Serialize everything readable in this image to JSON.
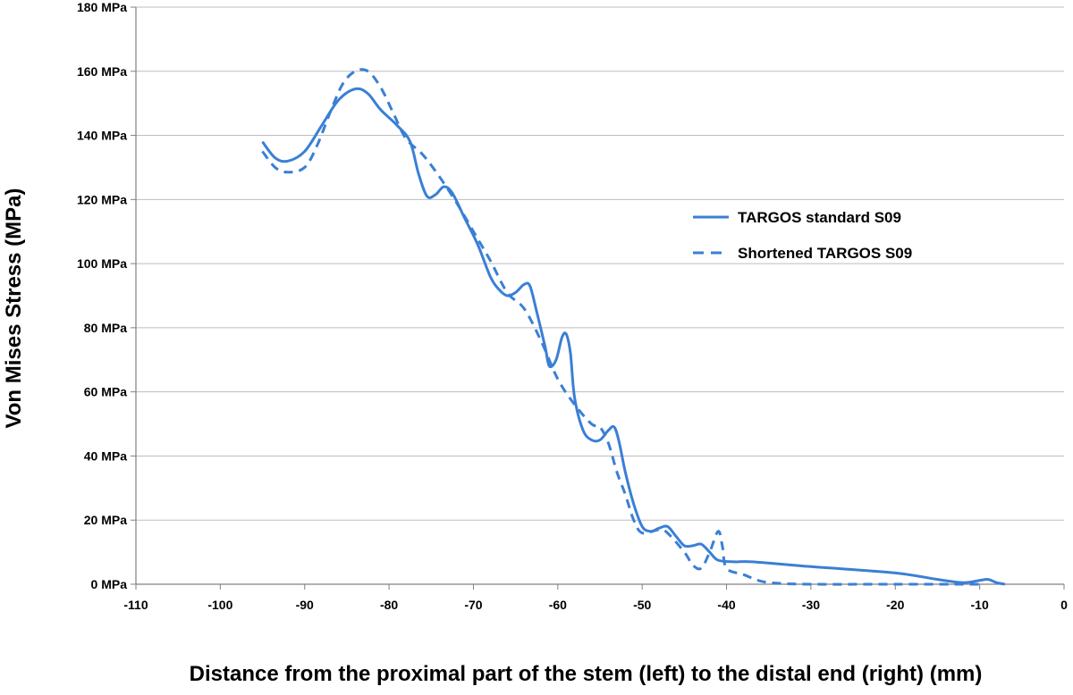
{
  "chart_data": {
    "type": "line",
    "title": "",
    "xlabel": "Distance from the proximal part of the stem (left) to the distal end (right) (mm)",
    "ylabel": "Von Mises Stress (MPa)",
    "xlim": [
      -110,
      0
    ],
    "ylim": [
      0,
      180
    ],
    "x_ticks": [
      -110,
      -100,
      -90,
      -80,
      -70,
      -60,
      -50,
      -40,
      -30,
      -20,
      -10,
      0
    ],
    "x_tick_labels": [
      "-110",
      "-100",
      "-90",
      "-80",
      "-70",
      "-60",
      "-50",
      "-40",
      "-30",
      "-20",
      "-10",
      "0"
    ],
    "y_ticks": [
      0,
      20,
      40,
      60,
      80,
      100,
      120,
      140,
      160,
      180
    ],
    "y_tick_labels": [
      "0 MPa",
      "20 MPa",
      "40 MPa",
      "60 MPa",
      "80 MPa",
      "100 MPa",
      "120 MPa",
      "140 MPa",
      "160 MPa",
      "180 MPa"
    ],
    "grid": "horizontal",
    "legend_position": "right",
    "series": [
      {
        "name": "TARGOS standard S09",
        "style": "solid",
        "color": "#3a7fd5",
        "points": [
          [
            -95,
            138
          ],
          [
            -93.5,
            133
          ],
          [
            -92,
            132
          ],
          [
            -90,
            135
          ],
          [
            -88,
            143
          ],
          [
            -86,
            151
          ],
          [
            -84,
            154.5
          ],
          [
            -82.5,
            153
          ],
          [
            -81,
            148
          ],
          [
            -79,
            143
          ],
          [
            -77.5,
            138
          ],
          [
            -76.5,
            128
          ],
          [
            -75.5,
            121
          ],
          [
            -74.5,
            121.5
          ],
          [
            -73.5,
            124
          ],
          [
            -72.5,
            122
          ],
          [
            -71,
            114
          ],
          [
            -69.5,
            106
          ],
          [
            -68,
            96
          ],
          [
            -67,
            92
          ],
          [
            -66,
            90
          ],
          [
            -65,
            91
          ],
          [
            -64,
            93.5
          ],
          [
            -63.3,
            93
          ],
          [
            -62.5,
            85
          ],
          [
            -61.5,
            74
          ],
          [
            -61,
            68
          ],
          [
            -60.2,
            70
          ],
          [
            -59.5,
            77
          ],
          [
            -59,
            78
          ],
          [
            -58.5,
            72
          ],
          [
            -58,
            58
          ],
          [
            -57,
            48
          ],
          [
            -56,
            45
          ],
          [
            -55,
            45
          ],
          [
            -54,
            48
          ],
          [
            -53.3,
            49
          ],
          [
            -52.7,
            44
          ],
          [
            -52,
            35
          ],
          [
            -51,
            25
          ],
          [
            -50,
            18
          ],
          [
            -49,
            16.5
          ],
          [
            -48,
            17.5
          ],
          [
            -47,
            18
          ],
          [
            -46,
            15
          ],
          [
            -45,
            12
          ],
          [
            -44,
            12
          ],
          [
            -43,
            12.5
          ],
          [
            -42,
            10
          ],
          [
            -41,
            7.5
          ],
          [
            -39,
            7
          ],
          [
            -37,
            7
          ],
          [
            -30,
            5.5
          ],
          [
            -20,
            3.5
          ],
          [
            -15,
            1.5
          ],
          [
            -12,
            0.5
          ],
          [
            -10,
            1.2
          ],
          [
            -9,
            1.5
          ],
          [
            -8,
            0.5
          ],
          [
            -7,
            0
          ]
        ]
      },
      {
        "name": "Shortened TARGOS S09",
        "style": "dashed",
        "color": "#3a7fd5",
        "points": [
          [
            -95,
            135
          ],
          [
            -93.5,
            130
          ],
          [
            -92,
            128.5
          ],
          [
            -90,
            130
          ],
          [
            -88.5,
            137
          ],
          [
            -87,
            147
          ],
          [
            -85.5,
            156
          ],
          [
            -84,
            160
          ],
          [
            -82.5,
            160
          ],
          [
            -81,
            155
          ],
          [
            -79.5,
            147
          ],
          [
            -78,
            139
          ],
          [
            -76,
            134
          ],
          [
            -74,
            127
          ],
          [
            -72,
            119
          ],
          [
            -70,
            110
          ],
          [
            -68,
            101
          ],
          [
            -66,
            91
          ],
          [
            -64,
            86
          ],
          [
            -62,
            76
          ],
          [
            -60,
            64
          ],
          [
            -58,
            56
          ],
          [
            -56,
            50
          ],
          [
            -55,
            49
          ],
          [
            -54,
            44
          ],
          [
            -53,
            35
          ],
          [
            -52,
            28
          ],
          [
            -51,
            20
          ],
          [
            -50,
            16
          ],
          [
            -48,
            17
          ],
          [
            -47,
            16
          ],
          [
            -45,
            10
          ],
          [
            -44,
            6
          ],
          [
            -43,
            5
          ],
          [
            -42,
            10
          ],
          [
            -41,
            16.5
          ],
          [
            -40.5,
            12
          ],
          [
            -40,
            5
          ],
          [
            -38,
            3
          ],
          [
            -36,
            1
          ],
          [
            -34,
            0.3
          ],
          [
            -30,
            0
          ],
          [
            -20,
            0
          ],
          [
            -10,
            0
          ]
        ]
      }
    ]
  }
}
